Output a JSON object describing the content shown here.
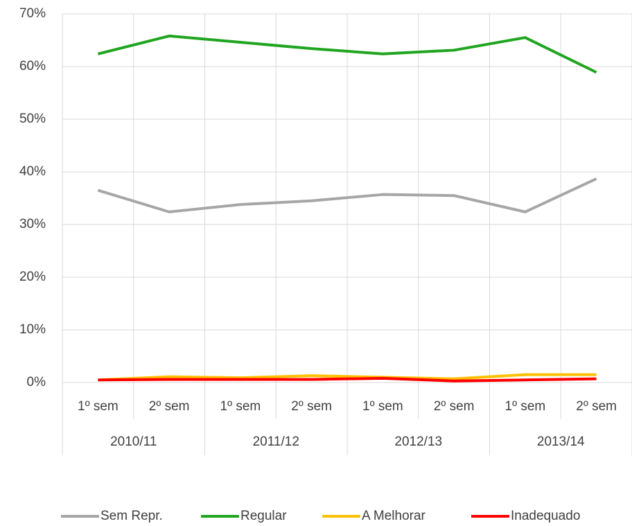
{
  "chart_data": {
    "type": "line",
    "categories": [
      "1º sem",
      "2º sem",
      "1º sem",
      "2º sem",
      "1º sem",
      "2º sem",
      "1º sem",
      "2º sem"
    ],
    "category_groups": [
      "2010/11",
      "2011/12",
      "2012/13",
      "2013/14"
    ],
    "series": [
      {
        "name": "Sem Repr.",
        "color": "#a6a6a6",
        "values": [
          36.5,
          32.4,
          33.8,
          34.5,
          35.7,
          35.5,
          32.4,
          38.7
        ]
      },
      {
        "name": "Regular",
        "color": "#1fa51f",
        "values": [
          62.4,
          65.8,
          64.6,
          63.4,
          62.4,
          63.1,
          65.5,
          58.9
        ]
      },
      {
        "name": "A Melhorar",
        "color": "#ffc000",
        "values": [
          0.5,
          1.1,
          0.9,
          1.3,
          1.0,
          0.7,
          1.5,
          1.5
        ]
      },
      {
        "name": "Inadequado",
        "color": "#ff0000",
        "values": [
          0.5,
          0.6,
          0.6,
          0.6,
          0.8,
          0.3,
          0.5,
          0.7
        ]
      }
    ],
    "ylim": [
      0,
      70
    ],
    "yticks": [
      {
        "value": 0,
        "label": "0%"
      },
      {
        "value": 10,
        "label": "10%"
      },
      {
        "value": 20,
        "label": "20%"
      },
      {
        "value": 30,
        "label": "30%"
      },
      {
        "value": 40,
        "label": "40%"
      },
      {
        "value": 50,
        "label": "50%"
      },
      {
        "value": 60,
        "label": "60%"
      },
      {
        "value": 70,
        "label": "70%"
      }
    ],
    "grid": true,
    "legend": "bottom"
  }
}
